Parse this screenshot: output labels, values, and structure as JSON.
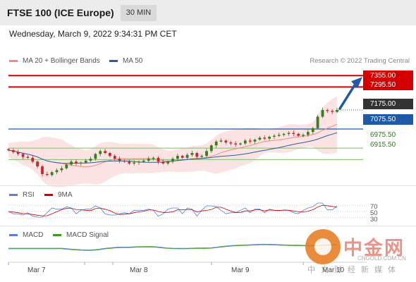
{
  "header": {
    "title": "FTSE 100 (ICE Europe)",
    "interval": "30 MIN"
  },
  "datetime": "Wednesday, March 9, 2022 9:34:31 PM CET",
  "credit": "Research © 2022 Trading Central",
  "legend": [
    {
      "label": "MA 20 + Bollinger Bands",
      "color": "#f08a8a"
    },
    {
      "label": "MA 50",
      "color": "#2f5a9e"
    }
  ],
  "price_levels": [
    {
      "label": "7355.00",
      "value": 7355,
      "style": "red"
    },
    {
      "label": "7295.50",
      "value": 7295.5,
      "style": "red"
    },
    {
      "label": "7175.00",
      "value": 7175,
      "style": "dark"
    },
    {
      "label": "7075.50",
      "value": 7075.5,
      "style": "blue"
    },
    {
      "label": "6975.50",
      "value": 6975.5,
      "style": "green"
    },
    {
      "label": "6915.50",
      "value": 6915.5,
      "style": "green"
    }
  ],
  "colors": {
    "up": "#3a7d1e",
    "down": "#c62828",
    "band": "#fbd9d9",
    "ma20": "#f08a8a",
    "ma50": "#2f5a9e",
    "resistance": "#d40000",
    "pivot": "#1e5aa8",
    "support": "#7fbf6a",
    "arrow": "#1e5aa8"
  },
  "rsi": {
    "legend": [
      {
        "label": "RSI",
        "color": "#5b7fd6"
      },
      {
        "label": "9MA",
        "color": "#d40000"
      }
    ],
    "levels": [
      "70",
      "50",
      "30"
    ]
  },
  "macd": {
    "legend": [
      {
        "label": "MACD",
        "color": "#5b7fd6"
      },
      {
        "label": "MACD Signal",
        "color": "#3a9a1a"
      }
    ]
  },
  "x_axis": [
    "Mar 7",
    "Mar 8",
    "Mar 9",
    "Mar 10"
  ],
  "watermark": {
    "chinese": "中金网",
    "url": "CNGOLD.COM.CN",
    "sub": "中文财经新媒体"
  },
  "chart_data": {
    "type": "candlestick",
    "symbol": "FTSE 100 (ICE Europe)",
    "interval": "30 MIN",
    "x_labels": [
      "Mar 7",
      "Mar 8",
      "Mar 9",
      "Mar 10"
    ],
    "ylim": [
      6810,
      7400
    ],
    "approx_closes": [
      6965,
      6955,
      6945,
      6930,
      6925,
      6905,
      6880,
      6840,
      6835,
      6850,
      6860,
      6870,
      6890,
      6905,
      6895,
      6900,
      6910,
      6920,
      6945,
      6960,
      6950,
      6935,
      6920,
      6910,
      6905,
      6895,
      6900,
      6905,
      6910,
      6920,
      6925,
      6905,
      6895,
      6905,
      6920,
      6935,
      6925,
      6940,
      6950,
      6930,
      6935,
      6960,
      6990,
      7010,
      7015,
      7005,
      7000,
      6995,
      7000,
      7015,
      7010,
      7020,
      7030,
      7025,
      7035,
      7040,
      7045,
      7050,
      7055,
      7050,
      7040,
      7045,
      7060,
      7080,
      7140,
      7175,
      7170,
      7165,
      7175
    ],
    "series": [
      {
        "name": "MA 20 + Bollinger Bands"
      },
      {
        "name": "MA 50"
      }
    ],
    "levels": [
      7355,
      7295.5,
      7175,
      7075.5,
      6975.5,
      6915.5
    ]
  }
}
